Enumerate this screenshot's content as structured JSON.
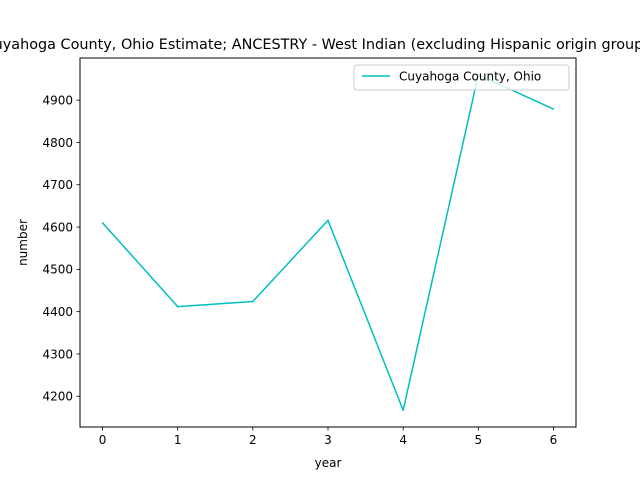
{
  "chart_data": {
    "type": "line",
    "title": "Cuyahoga County, Ohio Estimate; ANCESTRY - West Indian (excluding Hispanic origin groups)",
    "xlabel": "year",
    "ylabel": "number",
    "x": [
      0,
      1,
      2,
      3,
      4,
      5,
      6
    ],
    "series": [
      {
        "name": "Cuyahoga County, Ohio",
        "color": "#00bfbf",
        "values": [
          4610,
          4412,
          4424,
          4616,
          4167,
          4960,
          4879
        ]
      }
    ],
    "xticks": [
      "0",
      "1",
      "2",
      "3",
      "4",
      "5",
      "6"
    ],
    "yticks": [
      "4200",
      "4300",
      "4400",
      "4500",
      "4600",
      "4700",
      "4800",
      "4900"
    ],
    "xlim": [
      -0.3,
      6.3
    ],
    "ylim": [
      4127.35,
      4999.65
    ],
    "grid": false,
    "legend_position": "top-right"
  }
}
